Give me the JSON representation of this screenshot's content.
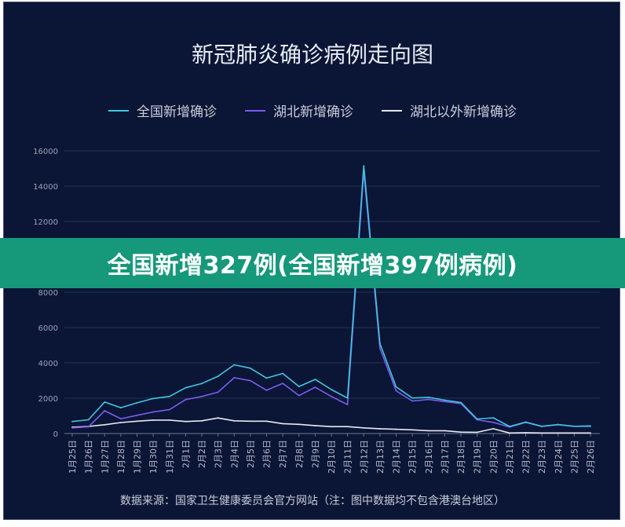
{
  "chart_data": {
    "type": "line",
    "title": "新冠肺炎确诊病例走向图",
    "x": [
      "1月25日",
      "1月26日",
      "1月27日",
      "1月28日",
      "1月29日",
      "1月30日",
      "1月31日",
      "2月1日",
      "2月2日",
      "2月3日",
      "2月4日",
      "2月5日",
      "2月6日",
      "2月7日",
      "2月8日",
      "2月9日",
      "2月10日",
      "2月11日",
      "2月12日",
      "2月13日",
      "2月14日",
      "2月15日",
      "2月16日",
      "2月17日",
      "2月18日",
      "2月19日",
      "2月20日",
      "2月21日",
      "2月22日",
      "2月23日",
      "2月24日",
      "2月25日",
      "2月26日"
    ],
    "y_ticks": [
      "0",
      "2000",
      "4000",
      "6000",
      "8000",
      "10000",
      "12000",
      "14000",
      "16000"
    ],
    "ylim": [
      0,
      16000
    ],
    "grid": true,
    "legend_position": "top",
    "series": [
      {
        "name": "全国新增确诊",
        "color": "#3ec8e0",
        "values": [
          680,
          780,
          1780,
          1460,
          1740,
          1980,
          2100,
          2590,
          2830,
          3240,
          3890,
          3700,
          3140,
          3400,
          2660,
          3060,
          2490,
          2010,
          15150,
          5090,
          2640,
          2010,
          2050,
          1890,
          1750,
          820,
          890,
          400,
          650,
          410,
          510,
          410,
          430
        ]
      },
      {
        "name": "湖北新增确诊",
        "color": "#7a5cf0",
        "values": [
          320,
          380,
          1290,
          840,
          1030,
          1220,
          1350,
          1920,
          2100,
          2340,
          3160,
          2990,
          2450,
          2840,
          2150,
          2620,
          2100,
          1640,
          14840,
          4820,
          2420,
          1840,
          1930,
          1810,
          1700,
          780,
          630,
          370,
          630,
          400,
          500,
          410,
          400
        ]
      },
      {
        "name": "湖北以外新增确诊",
        "color": "#e8e8f0",
        "values": [
          360,
          400,
          500,
          620,
          700,
          760,
          760,
          680,
          720,
          880,
          720,
          700,
          700,
          560,
          520,
          450,
          390,
          390,
          320,
          270,
          240,
          210,
          160,
          160,
          80,
          70,
          270,
          30,
          50,
          30,
          30,
          30,
          30
        ]
      }
    ]
  },
  "banner": {
    "text": "全国新增327例(全国新增397例病例)"
  },
  "source": {
    "text": "数据来源：国家卫生健康委员会官方网站（注：图中数据均不包含港澳台地区）"
  }
}
